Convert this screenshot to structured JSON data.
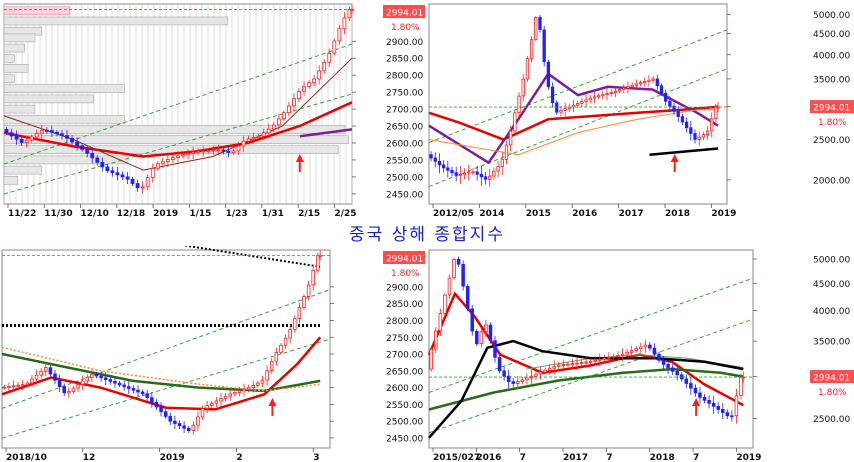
{
  "page_title": "중국 상해 종합지수",
  "colors": {
    "price_badge_bg": "#ff4d4d",
    "pct_text": "#ff2020",
    "ma_red": "#e60000",
    "ma_brown": "#8b2a10",
    "ma_purple": "#7a1f99",
    "ma_orange": "#ff8a3d",
    "ma_green": "#2a6a1a",
    "ma_black": "#000000",
    "trend_green": "#3aa03a",
    "candle_up": "#ff2020",
    "candle_down": "#2020ff"
  },
  "chart_data": [
    {
      "type": "line",
      "panel": "top-left",
      "series_kind": "candlestick daily with volume-by-price",
      "last_price": "2994.01",
      "change_pct": "1.80%",
      "y_ticks": [
        "2450.00",
        "2500.00",
        "2550.00",
        "2600.00",
        "2650.00",
        "2700.00",
        "2750.00",
        "2800.00",
        "2850.00",
        "2900.00"
      ],
      "x_ticks": [
        "11/22",
        "11/30",
        "12/10",
        "12/18",
        "2019",
        "1/15",
        "1/23",
        "1/31",
        "2/15",
        "2/25"
      ],
      "ylim": [
        2420,
        3010
      ],
      "price_path": [
        [
          0,
          2640
        ],
        [
          6,
          2600
        ],
        [
          12,
          2640
        ],
        [
          18,
          2620
        ],
        [
          24,
          2575
        ],
        [
          30,
          2520
        ],
        [
          36,
          2495
        ],
        [
          40,
          2460
        ],
        [
          44,
          2535
        ],
        [
          50,
          2560
        ],
        [
          56,
          2575
        ],
        [
          62,
          2580
        ],
        [
          66,
          2570
        ],
        [
          70,
          2610
        ],
        [
          74,
          2620
        ],
        [
          78,
          2650
        ],
        [
          82,
          2700
        ],
        [
          86,
          2760
        ],
        [
          90,
          2790
        ],
        [
          94,
          2860
        ],
        [
          98,
          2960
        ],
        [
          100,
          2994
        ]
      ],
      "ma_red": [
        [
          0,
          2630
        ],
        [
          20,
          2590
        ],
        [
          40,
          2560
        ],
        [
          55,
          2575
        ],
        [
          70,
          2600
        ],
        [
          85,
          2650
        ],
        [
          100,
          2720
        ]
      ],
      "ma_brown": [
        [
          0,
          2680
        ],
        [
          20,
          2610
        ],
        [
          40,
          2520
        ],
        [
          60,
          2560
        ],
        [
          80,
          2650
        ],
        [
          100,
          2850
        ]
      ],
      "ma_purple": [
        [
          85,
          2620
        ],
        [
          100,
          2640
        ]
      ],
      "volume_profile": [
        {
          "price": 2990,
          "width": 0.19
        },
        {
          "price": 2960,
          "width": 0.65
        },
        {
          "price": 2930,
          "width": 0.11
        },
        {
          "price": 2910,
          "width": 0.09
        },
        {
          "price": 2880,
          "width": 0.06
        },
        {
          "price": 2850,
          "width": 0.03
        },
        {
          "price": 2820,
          "width": 0.07
        },
        {
          "price": 2790,
          "width": 0.03
        },
        {
          "price": 2760,
          "width": 0.35
        },
        {
          "price": 2730,
          "width": 0.26
        },
        {
          "price": 2700,
          "width": 0.09
        },
        {
          "price": 2670,
          "width": 0.35
        },
        {
          "price": 2640,
          "width": 0.99
        },
        {
          "price": 2610,
          "width": 1.0
        },
        {
          "price": 2580,
          "width": 0.97
        },
        {
          "price": 2550,
          "width": 0.36
        },
        {
          "price": 2520,
          "width": 0.11
        },
        {
          "price": 2490,
          "width": 0.04
        }
      ]
    },
    {
      "type": "line",
      "panel": "top-right",
      "series_kind": "candlestick monthly (log scale)",
      "last_price": "2994.01",
      "change_pct": "1.80%",
      "y_ticks": [
        "2000.00",
        "2500.00",
        "3000.00",
        "3500.00",
        "4000.00",
        "4500.00",
        "5000.00"
      ],
      "x_ticks": [
        "2012/05",
        "2014",
        "2015",
        "2016",
        "2017",
        "2018",
        "2019"
      ],
      "ylim": [
        1750,
        5300
      ],
      "price_path": [
        [
          0,
          2300
        ],
        [
          5,
          2150
        ],
        [
          10,
          2050
        ],
        [
          15,
          2100
        ],
        [
          20,
          2000
        ],
        [
          25,
          2200
        ],
        [
          28,
          2600
        ],
        [
          32,
          3400
        ],
        [
          35,
          4300
        ],
        [
          37,
          5100
        ],
        [
          40,
          3500
        ],
        [
          43,
          2900
        ],
        [
          48,
          3000
        ],
        [
          55,
          3150
        ],
        [
          62,
          3250
        ],
        [
          70,
          3400
        ],
        [
          76,
          3500
        ],
        [
          80,
          3100
        ],
        [
          85,
          2800
        ],
        [
          90,
          2500
        ],
        [
          94,
          2600
        ],
        [
          97,
          2994
        ]
      ],
      "ma_red": [
        [
          0,
          2900
        ],
        [
          10,
          2750
        ],
        [
          25,
          2500
        ],
        [
          40,
          2800
        ],
        [
          55,
          2850
        ],
        [
          70,
          2900
        ],
        [
          85,
          2950
        ],
        [
          97,
          3000
        ]
      ],
      "ma_purple": [
        [
          0,
          2700
        ],
        [
          20,
          2200
        ],
        [
          30,
          2800
        ],
        [
          40,
          3600
        ],
        [
          50,
          3200
        ],
        [
          60,
          3350
        ],
        [
          75,
          3300
        ],
        [
          90,
          2900
        ],
        [
          97,
          2700
        ]
      ],
      "ma_orange": [
        [
          0,
          2500
        ],
        [
          30,
          2300
        ],
        [
          50,
          2600
        ],
        [
          70,
          2800
        ],
        [
          90,
          2950
        ],
        [
          97,
          2950
        ]
      ],
      "ma_black": [
        [
          74,
          2300
        ],
        [
          97,
          2380
        ]
      ]
    },
    {
      "type": "line",
      "panel": "bottom-left",
      "series_kind": "candlestick daily",
      "last_price": "2994.01",
      "change_pct": "1.80%",
      "y_ticks": [
        "2450.00",
        "2500.00",
        "2550.00",
        "2600.00",
        "2650.00",
        "2700.00",
        "2750.00",
        "2800.00",
        "2850.00",
        "2900.00"
      ],
      "x_ticks": [
        "2018/10",
        "12",
        "2019",
        "2",
        "3"
      ],
      "ylim": [
        2420,
        3010
      ],
      "price_path": [
        [
          0,
          2600
        ],
        [
          8,
          2610
        ],
        [
          14,
          2660
        ],
        [
          20,
          2580
        ],
        [
          28,
          2640
        ],
        [
          36,
          2610
        ],
        [
          44,
          2580
        ],
        [
          52,
          2500
        ],
        [
          58,
          2470
        ],
        [
          62,
          2540
        ],
        [
          70,
          2580
        ],
        [
          76,
          2600
        ],
        [
          80,
          2620
        ],
        [
          84,
          2700
        ],
        [
          88,
          2760
        ],
        [
          91,
          2830
        ],
        [
          94,
          2900
        ],
        [
          97,
          2994
        ]
      ],
      "ma_red": [
        [
          0,
          2580
        ],
        [
          15,
          2630
        ],
        [
          30,
          2600
        ],
        [
          50,
          2540
        ],
        [
          65,
          2535
        ],
        [
          80,
          2580
        ],
        [
          90,
          2670
        ],
        [
          97,
          2750
        ]
      ],
      "ma_green": [
        [
          0,
          2700
        ],
        [
          20,
          2660
        ],
        [
          40,
          2620
        ],
        [
          60,
          2600
        ],
        [
          80,
          2590
        ],
        [
          97,
          2620
        ]
      ],
      "ma_orange_dotted": [
        [
          0,
          2720
        ],
        [
          30,
          2650
        ],
        [
          60,
          2610
        ],
        [
          80,
          2590
        ],
        [
          97,
          2610
        ]
      ],
      "ma_black_dotted_flat": [
        [
          0,
          2785
        ],
        [
          97,
          2785
        ]
      ],
      "ma_black_dotted_high": [
        [
          45,
          3040
        ],
        [
          97,
          2960
        ]
      ]
    },
    {
      "type": "line",
      "panel": "bottom-right",
      "series_kind": "candlestick weekly",
      "last_price": "2994.01",
      "change_pct": "1.80%",
      "y_ticks": [
        "2500.00",
        "3000.00",
        "3500.00",
        "4000.00",
        "4500.00",
        "5000.00"
      ],
      "x_ticks": [
        "2015/027",
        "2016",
        "7",
        "2017",
        "7",
        "2018",
        "7",
        "2019"
      ],
      "ylim": [
        2200,
        5200
      ],
      "price_path": [
        [
          0,
          3100
        ],
        [
          4,
          3900
        ],
        [
          7,
          4600
        ],
        [
          9,
          5150
        ],
        [
          12,
          4200
        ],
        [
          15,
          3400
        ],
        [
          18,
          3800
        ],
        [
          22,
          3100
        ],
        [
          26,
          2900
        ],
        [
          32,
          3000
        ],
        [
          40,
          3150
        ],
        [
          50,
          3200
        ],
        [
          60,
          3300
        ],
        [
          68,
          3450
        ],
        [
          72,
          3200
        ],
        [
          78,
          3000
        ],
        [
          84,
          2750
        ],
        [
          90,
          2600
        ],
        [
          94,
          2500
        ],
        [
          97,
          2994
        ]
      ],
      "ma_red": [
        [
          0,
          3300
        ],
        [
          8,
          4300
        ],
        [
          14,
          3900
        ],
        [
          22,
          3300
        ],
        [
          35,
          3050
        ],
        [
          50,
          3150
        ],
        [
          65,
          3300
        ],
        [
          75,
          3200
        ],
        [
          85,
          2900
        ],
        [
          97,
          2650
        ]
      ],
      "ma_black": [
        [
          0,
          2300
        ],
        [
          10,
          2700
        ],
        [
          18,
          3400
        ],
        [
          26,
          3500
        ],
        [
          35,
          3350
        ],
        [
          50,
          3250
        ],
        [
          70,
          3250
        ],
        [
          85,
          3200
        ],
        [
          97,
          3100
        ]
      ],
      "ma_green": [
        [
          0,
          2600
        ],
        [
          20,
          2800
        ],
        [
          40,
          2950
        ],
        [
          60,
          3050
        ],
        [
          75,
          3100
        ],
        [
          90,
          3050
        ],
        [
          97,
          3000
        ]
      ],
      "ma_green_light": [
        [
          30,
          3100
        ],
        [
          50,
          3250
        ],
        [
          65,
          3300
        ],
        [
          80,
          3250
        ],
        [
          97,
          3120
        ]
      ]
    }
  ]
}
